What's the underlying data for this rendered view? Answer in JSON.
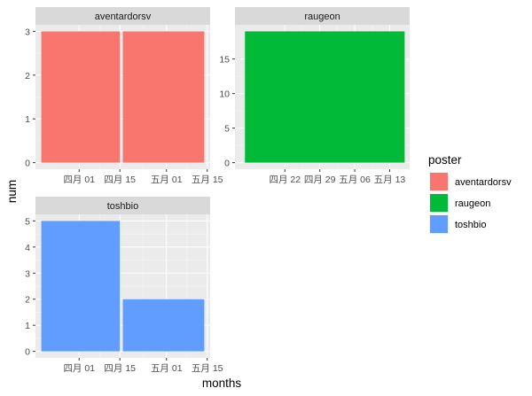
{
  "colors": {
    "aventardorsv": "#F8766D",
    "raugeon": "#00BA38",
    "toshbio": "#619CFF",
    "panel_bg": "#EBEBEB",
    "strip_bg": "#D9D9D9",
    "grid_major": "#FFFFFF"
  },
  "chart_data": {
    "type": "bar",
    "facet_by": "poster",
    "xlabel": "months",
    "ylabel": "num",
    "legend": {
      "title": "poster",
      "placement": "right",
      "entries": [
        "aventardorsv",
        "raugeon",
        "toshbio"
      ]
    },
    "panels": [
      {
        "name": "aventardorsv",
        "strip": "aventardorsv",
        "color_key": "aventardorsv",
        "ylim": [
          0,
          3
        ],
        "y_ticks": [
          0,
          1,
          2,
          3
        ],
        "y_tick_labels": [
          "0",
          "1",
          "2",
          "3"
        ],
        "xlim": [
          "2019-03-17",
          "2019-05-16"
        ],
        "x_ticks": [
          "2019-04-01",
          "2019-04-15",
          "2019-05-01",
          "2019-05-15"
        ],
        "x_tick_labels": [
          "四月 01",
          "四月 15",
          "五月 01",
          "五月 15"
        ],
        "bars": [
          {
            "x0": "2019-03-19",
            "x1": "2019-04-15",
            "y": 3
          },
          {
            "x0": "2019-04-16",
            "x1": "2019-05-14",
            "y": 3
          }
        ]
      },
      {
        "name": "raugeon",
        "strip": "raugeon",
        "color_key": "raugeon",
        "ylim": [
          0,
          19
        ],
        "y_ticks": [
          0,
          5,
          10,
          15
        ],
        "y_tick_labels": [
          "0",
          "5",
          "10",
          "15"
        ],
        "xlim": [
          "2019-04-12",
          "2019-05-17"
        ],
        "x_ticks": [
          "2019-04-22",
          "2019-04-29",
          "2019-05-06",
          "2019-05-13"
        ],
        "x_tick_labels": [
          "四月 22",
          "四月 29",
          "五月 06",
          "五月 13"
        ],
        "bars": [
          {
            "x0": "2019-04-14",
            "x1": "2019-05-16",
            "y": 19
          }
        ]
      },
      {
        "name": "toshbio",
        "strip": "toshbio",
        "color_key": "toshbio",
        "ylim": [
          0,
          5
        ],
        "y_ticks": [
          0,
          1,
          2,
          3,
          4,
          5
        ],
        "y_tick_labels": [
          "0",
          "1",
          "2",
          "3",
          "4",
          "5"
        ],
        "xlim": [
          "2019-03-17",
          "2019-05-16"
        ],
        "x_ticks": [
          "2019-04-01",
          "2019-04-15",
          "2019-05-01",
          "2019-05-15"
        ],
        "x_tick_labels": [
          "四月 01",
          "四月 15",
          "五月 01",
          "五月 15"
        ],
        "bars": [
          {
            "x0": "2019-03-19",
            "x1": "2019-04-15",
            "y": 5
          },
          {
            "x0": "2019-04-16",
            "x1": "2019-05-14",
            "y": 2
          }
        ]
      }
    ]
  }
}
